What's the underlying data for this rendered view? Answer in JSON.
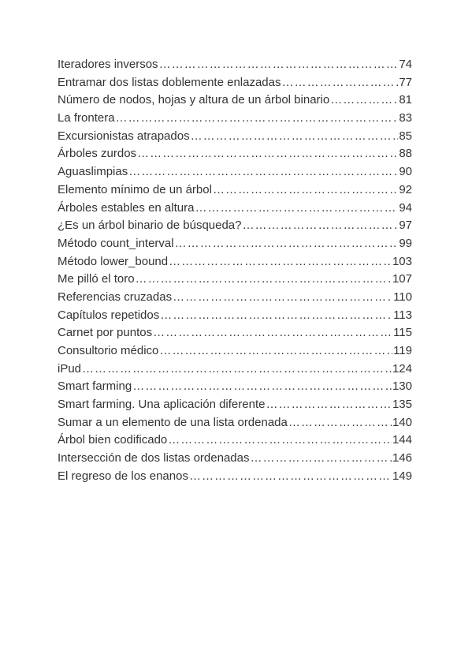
{
  "toc": {
    "entries": [
      {
        "title": "Iteradores inversos",
        "page": 74
      },
      {
        "title": "Entramar dos listas doblemente enlazadas",
        "page": 77
      },
      {
        "title": "Número de nodos, hojas y altura de un árbol binario",
        "page": 81
      },
      {
        "title": "La frontera",
        "page": 83
      },
      {
        "title": "Excursionistas atrapados",
        "page": 85
      },
      {
        "title": "Árboles zurdos",
        "page": 88
      },
      {
        "title": "Aguaslimpias",
        "page": 90
      },
      {
        "title": "Elemento mínimo de un árbol",
        "page": 92
      },
      {
        "title": "Árboles estables en altura",
        "page": 94
      },
      {
        "title": "¿Es un árbol binario de búsqueda?",
        "page": 97
      },
      {
        "title": "Método count_interval",
        "page": 99
      },
      {
        "title": "Método lower_bound",
        "page": 103
      },
      {
        "title": "Me pilló el toro",
        "page": 107
      },
      {
        "title": "Referencias cruzadas",
        "page": 110
      },
      {
        "title": "Capítulos repetidos",
        "page": 113
      },
      {
        "title": "Carnet por puntos",
        "page": 115
      },
      {
        "title": "Consultorio médico",
        "page": 119
      },
      {
        "title": "iPud",
        "page": 124
      },
      {
        "title": "Smart farming",
        "page": 130
      },
      {
        "title": "Smart farming. Una aplicación diferente",
        "page": 135
      },
      {
        "title": "Sumar a un elemento de una lista ordenada",
        "page": 140
      },
      {
        "title": "Árbol bien codificado",
        "page": 144
      },
      {
        "title": "Intersección de dos listas ordenadas",
        "page": 146
      },
      {
        "title": "El regreso de los enanos",
        "page": 149
      }
    ]
  }
}
